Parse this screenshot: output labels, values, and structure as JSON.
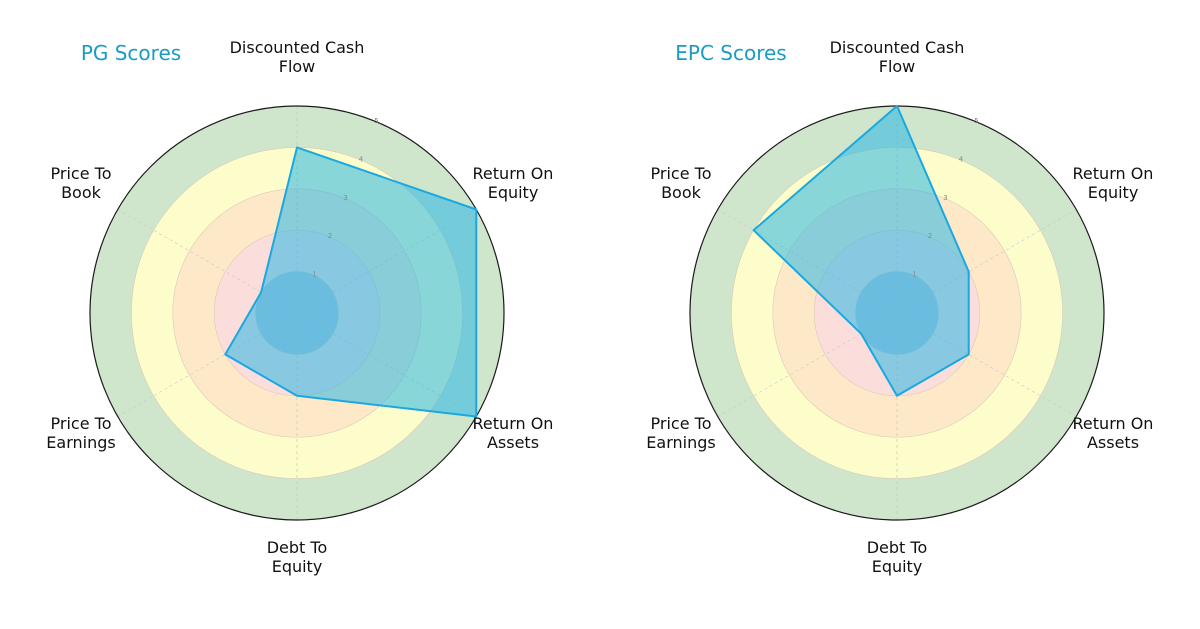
{
  "chart_data": [
    {
      "type": "radar",
      "title": "PG Scores",
      "categories": [
        "Discounted Cash Flow",
        "Return On Equity",
        "Return On Assets",
        "Debt To Equity",
        "Price To Earnings",
        "Price To Book"
      ],
      "values": [
        4,
        5,
        5,
        2,
        2,
        1
      ],
      "rlim": [
        0,
        5
      ],
      "rticks": [
        1,
        2,
        3,
        4,
        5
      ]
    },
    {
      "type": "radar",
      "title": "EPC Scores",
      "categories": [
        "Discounted Cash Flow",
        "Return On Equity",
        "Return On Assets",
        "Debt To Equity",
        "Price To Earnings",
        "Price To Book"
      ],
      "values": [
        5,
        2,
        2,
        2,
        1,
        4
      ],
      "rlim": [
        0,
        5
      ],
      "rticks": [
        1,
        2,
        3,
        4,
        5
      ]
    }
  ],
  "labels": [
    [
      "Discounted Cash",
      "Flow"
    ],
    [
      "Return On",
      "Equity"
    ],
    [
      "Return On",
      "Assets"
    ],
    [
      "Debt To",
      "Equity"
    ],
    [
      "Price To",
      "Earnings"
    ],
    [
      "Price To",
      "Book"
    ]
  ],
  "colors": {
    "title": "#1a9bc4",
    "polygon_fill": "#29b6e6",
    "polygon_stroke": "#1aa8e0",
    "band_5": "#cfe5cc",
    "band_4": "#fdfccb",
    "band_3": "#fde8c8",
    "band_2": "#fbdedc",
    "band_1": "#9bbfd6"
  }
}
